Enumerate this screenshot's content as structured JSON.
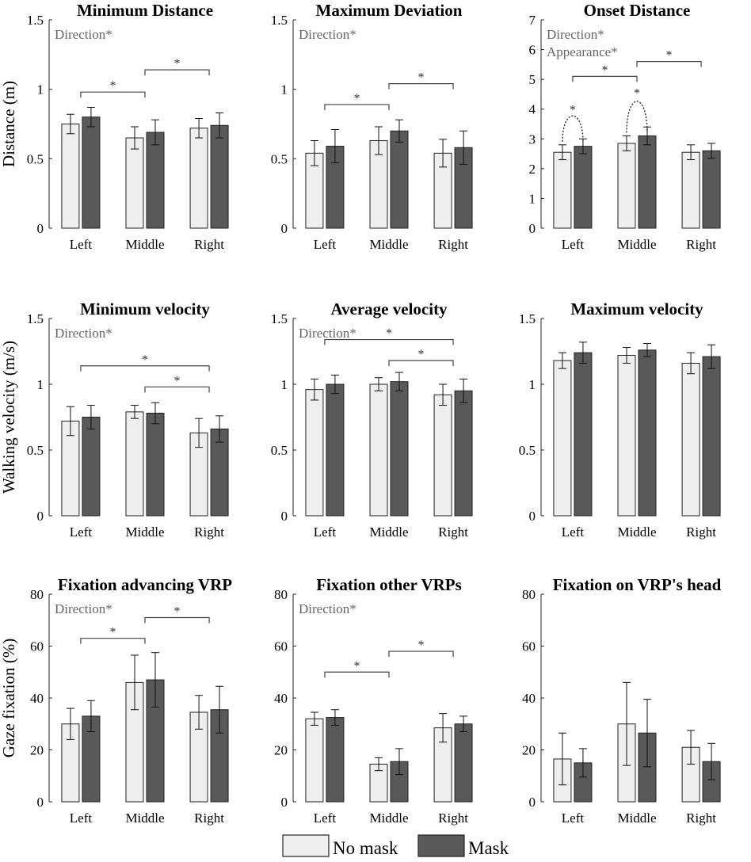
{
  "chart_data": [
    {
      "type": "bar",
      "title": "Minimum Distance",
      "ylabel": "Distance (m)",
      "ylim": [
        0,
        1.5
      ],
      "yticks": [
        "0",
        "0.5",
        "1",
        "1.5"
      ],
      "categories": [
        "Left",
        "Middle",
        "Right"
      ],
      "series": [
        {
          "name": "No mask",
          "values": [
            0.75,
            0.65,
            0.72
          ],
          "errors": [
            0.07,
            0.08,
            0.07
          ]
        },
        {
          "name": "Mask",
          "values": [
            0.8,
            0.69,
            0.74
          ],
          "errors": [
            0.07,
            0.09,
            0.09
          ]
        }
      ],
      "annotations": [
        "Direction*"
      ],
      "significance": [
        {
          "from": 0,
          "to": 1,
          "y": 0.98,
          "label": "*"
        },
        {
          "from": 1,
          "to": 2,
          "y": 1.14,
          "label": "*"
        }
      ]
    },
    {
      "type": "bar",
      "title": "Maximum Deviation",
      "ylabel": "",
      "ylim": [
        0,
        1.5
      ],
      "yticks": [
        "0",
        "0.5",
        "1",
        "1.5"
      ],
      "categories": [
        "Left",
        "Middle",
        "Right"
      ],
      "series": [
        {
          "name": "No mask",
          "values": [
            0.54,
            0.63,
            0.54
          ],
          "errors": [
            0.09,
            0.1,
            0.1
          ]
        },
        {
          "name": "Mask",
          "values": [
            0.59,
            0.7,
            0.58
          ],
          "errors": [
            0.12,
            0.08,
            0.12
          ]
        }
      ],
      "annotations": [
        "Direction*"
      ],
      "significance": [
        {
          "from": 0,
          "to": 1,
          "y": 0.89,
          "label": "*"
        },
        {
          "from": 1,
          "to": 2,
          "y": 1.04,
          "label": "*"
        }
      ]
    },
    {
      "type": "bar",
      "title": "Onset Distance",
      "ylabel": "",
      "ylim": [
        0,
        7
      ],
      "yticks": [
        "0",
        "1",
        "2",
        "3",
        "4",
        "5",
        "6",
        "7"
      ],
      "categories": [
        "Left",
        "Middle",
        "Right"
      ],
      "series": [
        {
          "name": "No mask",
          "values": [
            2.55,
            2.85,
            2.55
          ],
          "errors": [
            0.25,
            0.25,
            0.25
          ]
        },
        {
          "name": "Mask",
          "values": [
            2.75,
            3.1,
            2.6
          ],
          "errors": [
            0.25,
            0.3,
            0.25
          ]
        }
      ],
      "annotations": [
        "Direction*",
        "Appearance*"
      ],
      "significance": [
        {
          "from": 0,
          "to": 1,
          "y": 5.1,
          "label": "*"
        },
        {
          "from": 1,
          "to": 2,
          "y": 5.6,
          "label": "*"
        }
      ],
      "within_group_significance": [
        {
          "category": 0,
          "y": 3.85,
          "label": "*"
        },
        {
          "category": 1,
          "y": 4.4,
          "label": "*"
        }
      ]
    },
    {
      "type": "bar",
      "title": "Minimum velocity",
      "ylabel": "Walking velocity (m/s)",
      "ylim": [
        0,
        1.5
      ],
      "yticks": [
        "0",
        "0.5",
        "1",
        "1.5"
      ],
      "categories": [
        "Left",
        "Middle",
        "Right"
      ],
      "series": [
        {
          "name": "No mask",
          "values": [
            0.72,
            0.79,
            0.63
          ],
          "errors": [
            0.11,
            0.05,
            0.11
          ]
        },
        {
          "name": "Mask",
          "values": [
            0.75,
            0.78,
            0.66
          ],
          "errors": [
            0.09,
            0.08,
            0.1
          ]
        }
      ],
      "annotations": [
        "Direction*"
      ],
      "significance": [
        {
          "from": 0,
          "to": 2,
          "y": 1.14,
          "label": "*"
        },
        {
          "from": 1,
          "to": 2,
          "y": 0.98,
          "label": "*"
        }
      ]
    },
    {
      "type": "bar",
      "title": "Average velocity",
      "ylabel": "",
      "ylim": [
        0,
        1.5
      ],
      "yticks": [
        "0",
        "0.5",
        "1",
        "1.5"
      ],
      "categories": [
        "Left",
        "Middle",
        "Right"
      ],
      "series": [
        {
          "name": "No mask",
          "values": [
            0.96,
            1.0,
            0.92
          ],
          "errors": [
            0.08,
            0.05,
            0.08
          ]
        },
        {
          "name": "Mask",
          "values": [
            1.0,
            1.02,
            0.95
          ],
          "errors": [
            0.07,
            0.07,
            0.09
          ]
        }
      ],
      "annotations": [
        "Direction*"
      ],
      "significance": [
        {
          "from": 0,
          "to": 2,
          "y": 1.34,
          "label": "*"
        },
        {
          "from": 1,
          "to": 2,
          "y": 1.18,
          "label": "*"
        }
      ]
    },
    {
      "type": "bar",
      "title": "Maximum velocity",
      "ylabel": "",
      "ylim": [
        0,
        1.5
      ],
      "yticks": [
        "0",
        "0.5",
        "1",
        "1.5"
      ],
      "categories": [
        "Left",
        "Middle",
        "Right"
      ],
      "series": [
        {
          "name": "No mask",
          "values": [
            1.18,
            1.22,
            1.16
          ],
          "errors": [
            0.06,
            0.06,
            0.08
          ]
        },
        {
          "name": "Mask",
          "values": [
            1.24,
            1.26,
            1.21
          ],
          "errors": [
            0.08,
            0.05,
            0.09
          ]
        }
      ],
      "annotations": [],
      "significance": []
    },
    {
      "type": "bar",
      "title": "Fixation advancing VRP",
      "ylabel": "Gaze fixation (%)",
      "ylim": [
        0,
        80
      ],
      "yticks": [
        "0",
        "20",
        "40",
        "60",
        "80"
      ],
      "categories": [
        "Left",
        "Middle",
        "Right"
      ],
      "series": [
        {
          "name": "No mask",
          "values": [
            30,
            46,
            34.5
          ],
          "errors": [
            6,
            10.5,
            6.5
          ]
        },
        {
          "name": "Mask",
          "values": [
            33,
            47,
            35.5
          ],
          "errors": [
            6,
            10.5,
            9
          ]
        }
      ],
      "annotations": [
        "Direction*"
      ],
      "significance": [
        {
          "from": 0,
          "to": 1,
          "y": 63,
          "label": "*"
        },
        {
          "from": 1,
          "to": 2,
          "y": 71,
          "label": "*"
        }
      ]
    },
    {
      "type": "bar",
      "title": "Fixation other VRPs",
      "ylabel": "",
      "ylim": [
        0,
        80
      ],
      "yticks": [
        "0",
        "20",
        "40",
        "60",
        "80"
      ],
      "categories": [
        "Left",
        "Middle",
        "Right"
      ],
      "series": [
        {
          "name": "No mask",
          "values": [
            32,
            14.5,
            28.5
          ],
          "errors": [
            2.5,
            2.5,
            5.5
          ]
        },
        {
          "name": "Mask",
          "values": [
            32.5,
            15.5,
            30
          ],
          "errors": [
            3,
            5,
            3
          ]
        }
      ],
      "annotations": [
        "Direction*"
      ],
      "significance": [
        {
          "from": 0,
          "to": 1,
          "y": 50,
          "label": "*"
        },
        {
          "from": 1,
          "to": 2,
          "y": 58,
          "label": "*"
        }
      ]
    },
    {
      "type": "bar",
      "title": "Fixation on VRP's head",
      "ylabel": "",
      "ylim": [
        0,
        80
      ],
      "yticks": [
        "0",
        "20",
        "40",
        "60",
        "80"
      ],
      "categories": [
        "Left",
        "Middle",
        "Right"
      ],
      "series": [
        {
          "name": "No mask",
          "values": [
            16.5,
            30,
            21
          ],
          "errors": [
            10,
            16,
            6.5
          ]
        },
        {
          "name": "Mask",
          "values": [
            15,
            26.5,
            15.5
          ],
          "errors": [
            5.5,
            13,
            7
          ]
        }
      ],
      "annotations": [],
      "significance": []
    }
  ],
  "legend": {
    "items": [
      {
        "label": "No mask",
        "color": "#efefef"
      },
      {
        "label": "Mask",
        "color": "#595959"
      }
    ]
  },
  "colors": {
    "no_mask": "#efefef",
    "mask": "#595959",
    "axis": "#262626",
    "annotation": "#666666"
  }
}
